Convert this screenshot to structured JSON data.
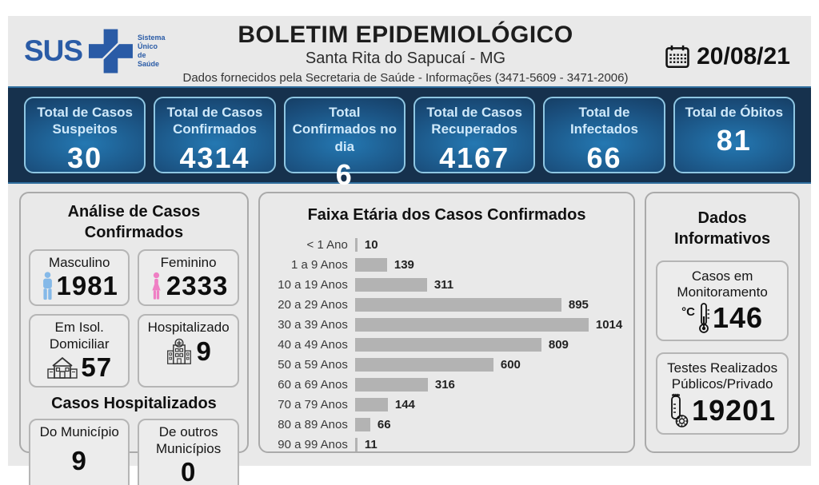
{
  "header": {
    "logo_text": "SUS",
    "logo_tagline": "Sistema\nÚnico\nde Saúde",
    "title": "BOLETIM EPIDEMIOLÓGICO",
    "subtitle": "Santa Rita do Sapucaí - MG",
    "info_line": "Dados fornecidos pela Secretaria de Saúde - Informações (3471-5609 - 3471-2006)",
    "date": "20/08/21"
  },
  "summary_cards": [
    {
      "label": "Total de Casos Suspeitos",
      "value": "30"
    },
    {
      "label": "Total de Casos Confirmados",
      "value": "4314"
    },
    {
      "label": "Total Confirmados no dia",
      "value": "6"
    },
    {
      "label": "Total de Casos Recuperados",
      "value": "4167"
    },
    {
      "label": "Total de Infectados",
      "value": "66"
    },
    {
      "label": "Total de Óbitos",
      "value": "81"
    }
  ],
  "analysis_panel": {
    "title": "Análise de Casos Confirmados",
    "cards": [
      {
        "label": "Masculino",
        "value": "1981",
        "icon": "male-icon"
      },
      {
        "label": "Feminino",
        "value": "2333",
        "icon": "female-icon"
      },
      {
        "label": "Em Isol.\nDomiciliar",
        "value": "57",
        "icon": "house-icon"
      },
      {
        "label": "Hospitalizado",
        "value": "9",
        "icon": "hospital-icon"
      }
    ],
    "hospitalized": {
      "title": "Casos Hospitalizados",
      "cards": [
        {
          "label": "Do Município",
          "value": "9"
        },
        {
          "label": "De outros\nMunicípios",
          "value": "0"
        }
      ]
    }
  },
  "chart_data": {
    "type": "bar",
    "orientation": "horizontal",
    "title": "Faixa Etária dos Casos Confirmados",
    "categories": [
      "< 1 Ano",
      "1 a 9 Anos",
      "10 a 19 Anos",
      "20 a 29 Anos",
      "30 a 39 Anos",
      "40 a 49 Anos",
      "50 a 59 Anos",
      "60 a 69 Anos",
      "70 a 79 Anos",
      "80 a 89 Anos",
      "90 a 99 Anos"
    ],
    "values": [
      10,
      139,
      311,
      895,
      1014,
      809,
      600,
      316,
      144,
      66,
      11
    ],
    "bar_color": "#b3b3b3",
    "value_labels": true,
    "xlim": [
      0,
      1100
    ],
    "legend": null,
    "grid": false
  },
  "info_panel": {
    "title": "Dados Informativos",
    "cards": [
      {
        "label": "Casos em\nMonitoramento",
        "value": "146",
        "icon": "thermometer-icon",
        "icon_text": "°C"
      },
      {
        "label": "Testes Realizados\nPúblicos/Privado",
        "value": "19201",
        "icon": "test-tube-icon"
      }
    ]
  },
  "colors": {
    "page_gray": "#e9e9e9",
    "band_navy": "#16314d",
    "stat_card_center_blue": "#2478b2",
    "stat_card_edge_blue": "#112f4e",
    "stat_card_border": "#8ec6e2",
    "stat_label_blue": "#cfe9fa",
    "bar_gray": "#b3b3b3",
    "male_blue": "#85b9e8",
    "female_pink": "#ef7fc4",
    "sus_logo_blue": "#2a5ba6"
  }
}
